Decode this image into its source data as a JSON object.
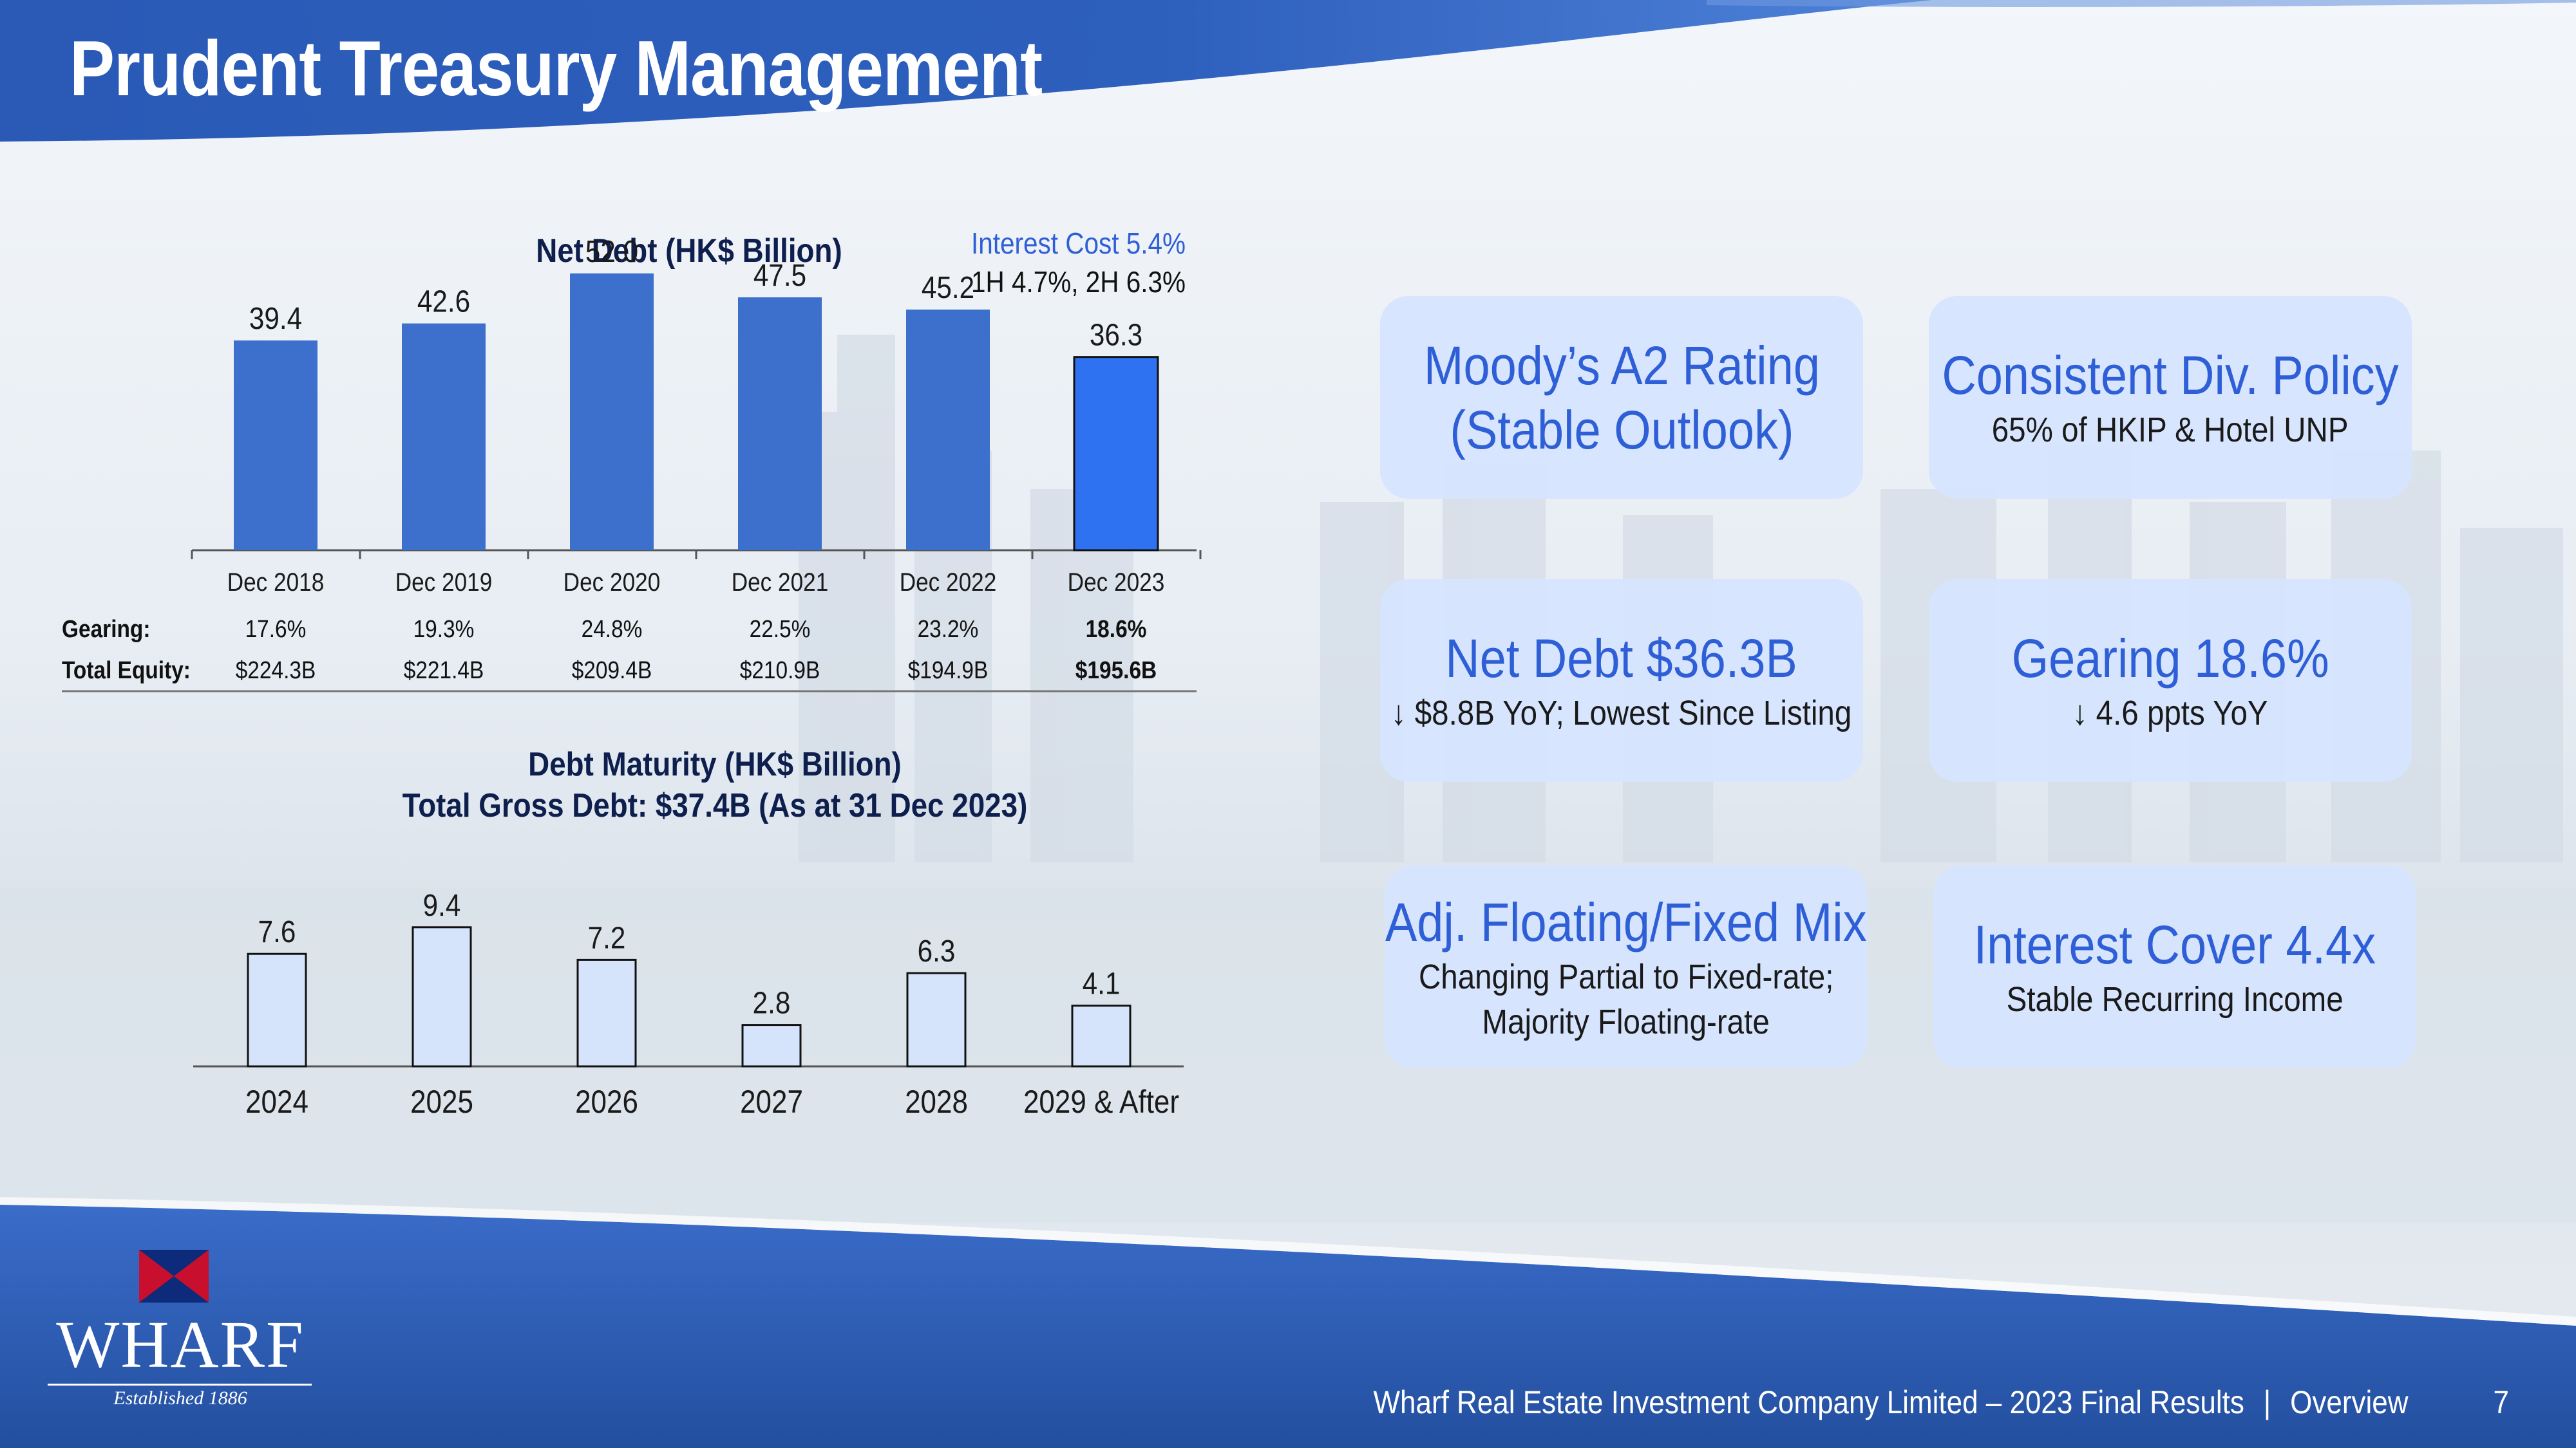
{
  "slide": {
    "title": "Prudent Treasury Management",
    "footer": {
      "company": "Wharf Real Estate Investment Company Limited – 2023 Final Results",
      "separator": "|",
      "section": "Overview",
      "page": "7"
    },
    "logo": {
      "name": "WHARF",
      "tagline": "Established 1886"
    },
    "interest_note": {
      "line1": "Interest Cost 5.4%",
      "line2": "1H 4.7%, 2H 6.3%"
    },
    "stat_boxes": [
      {
        "title": "Moody’s A2 Rating",
        "subtitle": "(Stable Outlook)"
      },
      {
        "title": "Consistent Div. Policy",
        "subtitle": "65% of HKIP & Hotel UNP"
      },
      {
        "title": "Net Debt $36.3B",
        "subtitle": "↓ $8.8B YoY; Lowest Since Listing"
      },
      {
        "title": "Gearing 18.6%",
        "subtitle": "↓ 4.6 ppts YoY"
      },
      {
        "title": "Adj. Floating/Fixed Mix",
        "subtitle": "Changing Partial to Fixed-rate;",
        "subtitle2": "Majority Floating-rate"
      },
      {
        "title": "Interest Cover 4.4x",
        "subtitle": "Stable Recurring Income"
      }
    ],
    "colors": {
      "header_blue": "#2d5cb8",
      "bar_blue": "#3d6fcc",
      "bar_highlight": "#2e72f2",
      "bar_light": "#d5e3fb",
      "accent_text": "#2f5fd6",
      "box_fill": "#d6e4ff"
    }
  },
  "chart_data": [
    {
      "type": "bar",
      "title": "Net Debt (HK$ Billion)",
      "categories": [
        "Dec 2018",
        "Dec 2019",
        "Dec 2020",
        "Dec 2021",
        "Dec 2022",
        "Dec 2023"
      ],
      "values": [
        39.4,
        42.6,
        52.0,
        47.5,
        45.2,
        36.3
      ],
      "value_labels": [
        "39.4",
        "42.6",
        "52.0",
        "47.5",
        "45.2",
        "36.3"
      ],
      "highlight_index": 5,
      "ylim": [
        0,
        55
      ],
      "grid": false,
      "table": {
        "rows": [
          {
            "label": "Gearing:",
            "values": [
              "17.6%",
              "19.3%",
              "24.8%",
              "22.5%",
              "23.2%",
              "18.6%"
            ]
          },
          {
            "label": "Total Equity:",
            "values": [
              "$224.3B",
              "$221.4B",
              "$209.4B",
              "$210.9B",
              "$194.9B",
              "$195.6B"
            ]
          }
        ]
      }
    },
    {
      "type": "bar",
      "title": "Debt Maturity (HK$ Billion)",
      "subtitle": "Total Gross Debt: $37.4B (As at 31 Dec 2023)",
      "categories": [
        "2024",
        "2025",
        "2026",
        "2027",
        "2028",
        "2029 & After"
      ],
      "values": [
        7.6,
        9.4,
        7.2,
        2.8,
        6.3,
        4.1
      ],
      "value_labels": [
        "7.6",
        "9.4",
        "7.2",
        "2.8",
        "6.3",
        "4.1"
      ],
      "ylim": [
        0,
        10
      ],
      "grid": false
    }
  ]
}
